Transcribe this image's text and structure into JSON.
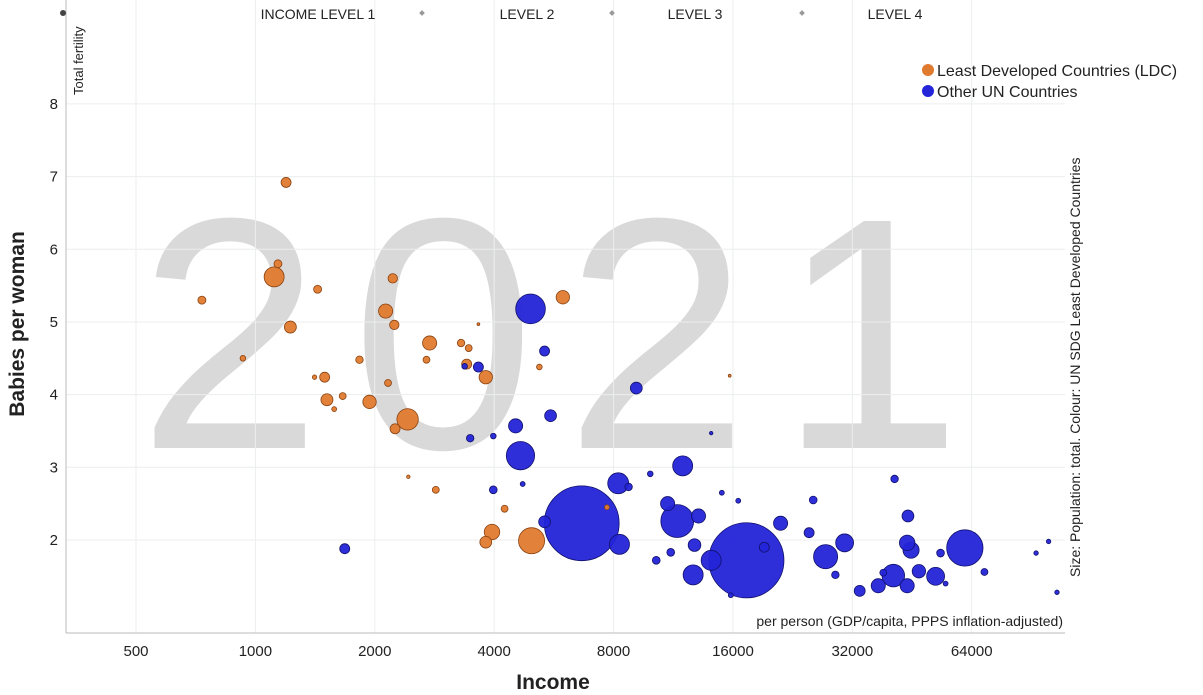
{
  "chart_data": {
    "type": "scatter",
    "year": "2021",
    "y_axis_top_label": "Total fertility",
    "ylabel": "Babies per woman",
    "xlabel": "Income",
    "x_axis_note": "per person (GDP/capita, PPPS inflation-adjusted)",
    "size_note": "Size: Population: total. Colour: UN SDG Least Developed Countries",
    "income_levels": [
      "INCOME LEVEL 1",
      "LEVEL 2",
      "LEVEL 3",
      "LEVEL 4"
    ],
    "xscale": "log",
    "xlim": [
      333,
      110000
    ],
    "xticks": [
      500,
      1000,
      2000,
      4000,
      8000,
      16000,
      32000,
      64000
    ],
    "ylim": [
      0.72,
      9.43
    ],
    "yticks": [
      2,
      3,
      4,
      5,
      6,
      7,
      8
    ],
    "grid": true,
    "legend": "top-right",
    "series": [
      {
        "name": "Least Developed Countries (LDC)",
        "color": "#e07a2e",
        "x": [
          1195,
          1115,
          1140,
          733,
          1225,
          1435,
          930,
          1495,
          1410,
          1515,
          1580,
          1660,
          1830,
          1940,
          2130,
          2220,
          2240,
          2160,
          2420,
          2250,
          2750,
          2700,
          3300,
          3450,
          3410,
          3810,
          2850,
          2430,
          3950,
          3810,
          4970,
          5960,
          4250,
          5200,
          7700,
          15700,
          3650
        ],
        "values": [
          6.92,
          5.62,
          5.8,
          5.3,
          4.93,
          5.45,
          4.5,
          4.24,
          4.24,
          3.93,
          3.8,
          3.98,
          4.48,
          3.9,
          5.15,
          5.6,
          4.96,
          4.16,
          3.66,
          3.53,
          4.71,
          4.48,
          4.71,
          4.64,
          4.42,
          4.24,
          2.69,
          2.87,
          2.11,
          1.97,
          1.99,
          5.34,
          2.43,
          4.38,
          2.45,
          4.26,
          4.97
        ],
        "size": [
          25,
          100,
          16,
          16,
          36,
          16,
          8,
          25,
          5,
          36,
          6,
          12,
          14,
          45,
          50,
          22,
          22,
          12,
          115,
          25,
          50,
          12,
          14,
          12,
          25,
          45,
          12,
          3,
          60,
          35,
          170,
          45,
          12,
          8,
          6,
          2,
          2
        ]
      },
      {
        "name": "Other UN Countries",
        "color": "#2424d8",
        "x": [
          1680,
          4940,
          5360,
          3650,
          3370,
          9130,
          5550,
          4530,
          3480,
          3980,
          4660,
          3980,
          4720,
          6650,
          8220,
          8280,
          8730,
          11580,
          11950,
          10950,
          12800,
          13100,
          9900,
          12700,
          17300,
          14100,
          21100,
          25500,
          27400,
          30600,
          29000,
          38300,
          40600,
          44000,
          37200,
          44200,
          40900,
          44000,
          45000,
          51900,
          47100,
          61500,
          68900,
          33400,
          93000,
          100000,
          105000,
          24900,
          19200,
          15000,
          16500,
          11150,
          10250,
          5360,
          14100,
          15800,
          53400,
          55000
        ],
        "values": [
          1.88,
          5.18,
          4.6,
          4.38,
          4.39,
          4.09,
          3.71,
          3.57,
          3.4,
          3.43,
          3.16,
          2.69,
          2.77,
          2.23,
          2.78,
          1.94,
          2.73,
          2.26,
          3.02,
          2.5,
          1.93,
          2.33,
          2.91,
          1.52,
          1.72,
          1.72,
          2.23,
          2.55,
          1.77,
          1.96,
          1.52,
          1.55,
          1.51,
          1.37,
          1.37,
          2.33,
          2.84,
          1.96,
          1.86,
          1.5,
          1.57,
          1.89,
          1.56,
          1.3,
          1.82,
          1.98,
          1.28,
          2.1,
          1.9,
          2.65,
          2.54,
          1.83,
          1.72,
          2.25,
          3.47,
          1.24,
          1.82,
          1.4
        ],
        "size": [
          25,
          220,
          25,
          25,
          8,
          35,
          35,
          50,
          14,
          8,
          200,
          15,
          6,
          1400,
          110,
          100,
          14,
          270,
          100,
          50,
          40,
          50,
          8,
          100,
          1410,
          100,
          50,
          15,
          145,
          80,
          14,
          12,
          127,
          50,
          50,
          35,
          14,
          60,
          65,
          80,
          45,
          330,
          12,
          30,
          5,
          5,
          5,
          25,
          25,
          6,
          6,
          15,
          15,
          35,
          3,
          6,
          15,
          6
        ]
      }
    ]
  }
}
